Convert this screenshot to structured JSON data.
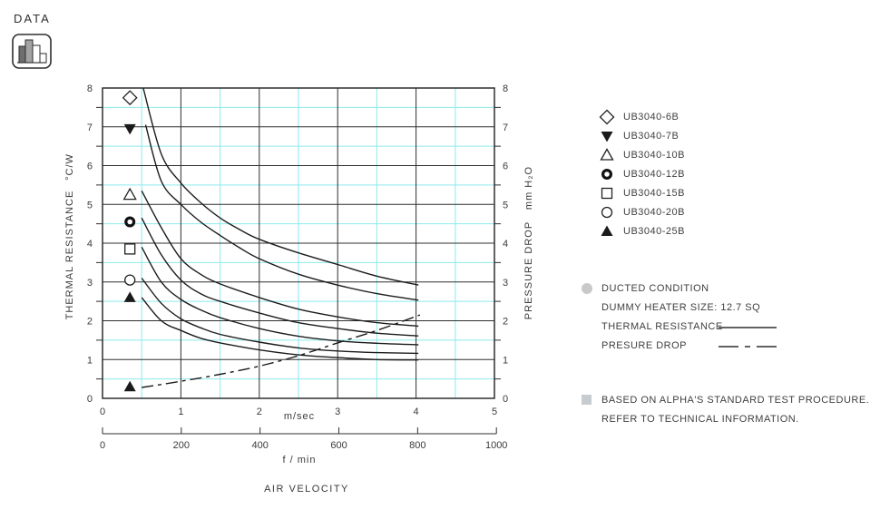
{
  "badge": {
    "label": "DATA",
    "icon": "bar-chart-icon"
  },
  "chart_data": {
    "type": "line",
    "xlabel": "m/sec",
    "xlabel_secondary": "f / min",
    "axis_caption": "AIR VELOCITY",
    "ylabel_left": "THERMAL RESISTANCE",
    "ylabel_left_unit": "°C/W",
    "ylabel_right": "PRESSURE DROP",
    "ylabel_right_unit": "mm H₂O",
    "xlim": [
      0,
      5
    ],
    "ylim": [
      0,
      8
    ],
    "x_ticks": [
      0,
      1,
      2,
      3,
      4,
      5
    ],
    "x2_ticks": [
      0,
      200,
      400,
      600,
      800,
      1000
    ],
    "y_ticks_left": [
      0,
      1,
      2,
      3,
      4,
      5,
      6,
      7,
      8
    ],
    "y_ticks_right": [
      0,
      1,
      2,
      3,
      4,
      5,
      6,
      7,
      8
    ],
    "grid": {
      "major_color": "#2f2f2f",
      "minor_color": "#8deaec",
      "major_interval": 1,
      "minor_interval": 0.5
    },
    "legend_position": "right",
    "series": [
      {
        "name": "UB3040-6B",
        "axis": "left",
        "style": "solid",
        "marker": "diamond-open",
        "marker_point": {
          "x": 0.35,
          "y": 7.75
        },
        "points": [
          [
            0.52,
            8.0
          ],
          [
            0.75,
            6.3
          ],
          [
            1,
            5.55
          ],
          [
            1.25,
            5.05
          ],
          [
            1.5,
            4.65
          ],
          [
            1.75,
            4.35
          ],
          [
            2,
            4.1
          ],
          [
            2.5,
            3.75
          ],
          [
            3,
            3.45
          ],
          [
            3.5,
            3.15
          ],
          [
            4.03,
            2.92
          ]
        ]
      },
      {
        "name": "UB3040-7B",
        "axis": "left",
        "style": "solid",
        "marker": "triangle-down-filled",
        "marker_point": {
          "x": 0.35,
          "y": 6.95
        },
        "points": [
          [
            0.55,
            7.05
          ],
          [
            0.75,
            5.6
          ],
          [
            1,
            5.0
          ],
          [
            1.25,
            4.55
          ],
          [
            1.5,
            4.2
          ],
          [
            1.75,
            3.88
          ],
          [
            2,
            3.6
          ],
          [
            2.5,
            3.2
          ],
          [
            3,
            2.92
          ],
          [
            3.5,
            2.7
          ],
          [
            4.03,
            2.53
          ]
        ]
      },
      {
        "name": "UB3040-10B",
        "axis": "left",
        "style": "solid",
        "marker": "triangle-up-open",
        "marker_point": {
          "x": 0.35,
          "y": 5.25
        },
        "points": [
          [
            0.5,
            5.35
          ],
          [
            0.75,
            4.4
          ],
          [
            1,
            3.6
          ],
          [
            1.25,
            3.2
          ],
          [
            1.5,
            2.95
          ],
          [
            2,
            2.6
          ],
          [
            2.5,
            2.3
          ],
          [
            3,
            2.1
          ],
          [
            3.5,
            1.95
          ],
          [
            4.03,
            1.86
          ]
        ]
      },
      {
        "name": "UB3040-12B",
        "axis": "left",
        "style": "solid",
        "marker": "circle-bold",
        "marker_point": {
          "x": 0.35,
          "y": 4.55
        },
        "points": [
          [
            0.5,
            4.65
          ],
          [
            0.75,
            3.7
          ],
          [
            1,
            3.05
          ],
          [
            1.25,
            2.7
          ],
          [
            1.5,
            2.5
          ],
          [
            2,
            2.2
          ],
          [
            2.5,
            1.95
          ],
          [
            3,
            1.8
          ],
          [
            3.5,
            1.68
          ],
          [
            4.03,
            1.61
          ]
        ]
      },
      {
        "name": "UB3040-15B",
        "axis": "left",
        "style": "solid",
        "marker": "square-open",
        "marker_point": {
          "x": 0.35,
          "y": 3.85
        },
        "points": [
          [
            0.5,
            3.9
          ],
          [
            0.75,
            3.0
          ],
          [
            1,
            2.55
          ],
          [
            1.25,
            2.28
          ],
          [
            1.5,
            2.08
          ],
          [
            2,
            1.8
          ],
          [
            2.5,
            1.6
          ],
          [
            3,
            1.48
          ],
          [
            3.5,
            1.42
          ],
          [
            4.03,
            1.38
          ]
        ]
      },
      {
        "name": "UB3040-20B",
        "axis": "left",
        "style": "solid",
        "marker": "circle-open",
        "marker_point": {
          "x": 0.35,
          "y": 3.05
        },
        "points": [
          [
            0.5,
            3.1
          ],
          [
            0.75,
            2.45
          ],
          [
            1,
            2.05
          ],
          [
            1.25,
            1.82
          ],
          [
            1.5,
            1.65
          ],
          [
            2,
            1.45
          ],
          [
            2.5,
            1.3
          ],
          [
            3,
            1.22
          ],
          [
            3.5,
            1.18
          ],
          [
            4.03,
            1.16
          ]
        ]
      },
      {
        "name": "UB3040-25B",
        "axis": "left",
        "style": "solid",
        "marker": "triangle-up-filled",
        "marker_point": {
          "x": 0.35,
          "y": 2.6
        },
        "points": [
          [
            0.5,
            2.6
          ],
          [
            0.75,
            2.0
          ],
          [
            1,
            1.75
          ],
          [
            1.25,
            1.55
          ],
          [
            1.5,
            1.43
          ],
          [
            2,
            1.25
          ],
          [
            2.5,
            1.12
          ],
          [
            3,
            1.05
          ],
          [
            3.5,
            1.0
          ],
          [
            4.03,
            0.99
          ]
        ]
      },
      {
        "name": "PRESSURE DROP",
        "axis": "right",
        "style": "dashdot",
        "marker": "triangle-up-filled",
        "marker_point": {
          "x": 0.35,
          "y": 0.3
        },
        "points": [
          [
            0.5,
            0.28
          ],
          [
            1,
            0.44
          ],
          [
            1.5,
            0.62
          ],
          [
            2,
            0.83
          ],
          [
            2.5,
            1.1
          ],
          [
            3,
            1.43
          ],
          [
            3.5,
            1.75
          ],
          [
            4.05,
            2.15
          ]
        ]
      }
    ]
  },
  "legend": {
    "items": [
      {
        "marker": "diamond-open",
        "label": "UB3040-6B"
      },
      {
        "marker": "triangle-down-filled",
        "label": "UB3040-7B"
      },
      {
        "marker": "triangle-up-open",
        "label": "UB3040-10B"
      },
      {
        "marker": "circle-bold",
        "label": "UB3040-12B"
      },
      {
        "marker": "square-open",
        "label": "UB3040-15B"
      },
      {
        "marker": "circle-open",
        "label": "UB3040-20B"
      },
      {
        "marker": "triangle-up-filled",
        "label": "UB3040-25B"
      }
    ]
  },
  "notes": {
    "condition": "DUCTED CONDITION",
    "heater": "DUMMY HEATER SIZE: 12.7 SQ",
    "thermal_label": "THERMAL RESISTANCE",
    "pressure_label": "PRESURE DROP",
    "thermal_line_style": "solid",
    "pressure_line_style": "dashdot"
  },
  "footnote": {
    "line1": "BASED ON ALPHA'S STANDARD TEST PROCEDURE.",
    "line2": "REFER TO TECHNICAL INFORMATION."
  }
}
